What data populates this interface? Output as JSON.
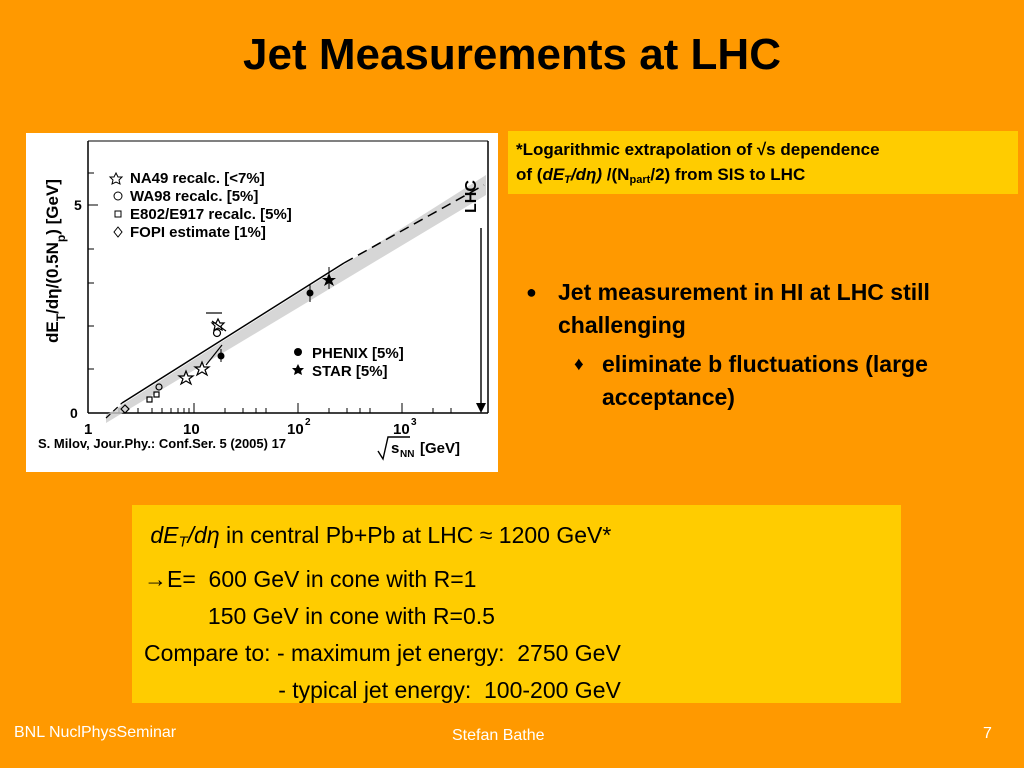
{
  "title": "Jet Measurements at LHC",
  "figure": {
    "ylabel_html": "dE<tspan baseline-shift='sub' font-size='12'>T</tspan>/dη/(0.5N<tspan baseline-shift='sub' font-size='12'>p</tspan>) [GeV]",
    "y_ticks": [
      "0",
      "5"
    ],
    "x_ticks": [
      "1",
      "10",
      "10",
      "10"
    ],
    "x_exp": [
      "2",
      "3"
    ],
    "legend_top": [
      {
        "symbol": "star-open",
        "label": "NA49 recalc. [<7%]"
      },
      {
        "symbol": "circle-open",
        "label": "WA98 recalc. [5%]"
      },
      {
        "symbol": "square-open",
        "label": "E802/E917 recalc. [5%]"
      },
      {
        "symbol": "diamond-open",
        "label": "FOPI estimate [1%]"
      }
    ],
    "legend_bottom": [
      {
        "symbol": "circle-filled",
        "label": "PHENIX [5%]"
      },
      {
        "symbol": "star-filled",
        "label": "STAR [5%]"
      }
    ],
    "lhc_label": "LHC",
    "xlabel_unit": "[GeV]",
    "xlabel_sqrt": "s",
    "xlabel_sub": "NN"
  },
  "caption": "S. Milov, Jour.Phy.: Conf.Ser. 5 (2005) 17",
  "note": {
    "line1": "*Logarithmic extrapolation of √s dependence",
    "line2_pre": "of (",
    "line2_de": "dE",
    "line2_sub": "T",
    "line2_eta": "/dη)",
    "line2_mid": " /(N",
    "line2_part": "part",
    "line2_post": "/2) from SIS to LHC"
  },
  "bullets": {
    "b1": "Jet measurement in HI at LHC still challenging",
    "b1_symbol": "●",
    "b2": "eliminate b fluctuations (large acceptance)",
    "b2_symbol": "♦"
  },
  "calc": {
    "l1_de": "dE",
    "l1_sub": "T",
    "l1_eta": "/dη",
    "l1_rest": " in central Pb+Pb at LHC ≈ 1200 GeV*",
    "l2": "→E=  600 GeV in cone with R=1",
    "l3": "          150 GeV in cone with R=0.5",
    "l4": "Compare to: - maximum jet energy:  2750 GeV",
    "l5": "                     - typical jet energy:  100-200 GeV"
  },
  "footer": {
    "left": "BNL NuclPhysSeminar",
    "center": "Stefan Bathe",
    "page": "7"
  }
}
